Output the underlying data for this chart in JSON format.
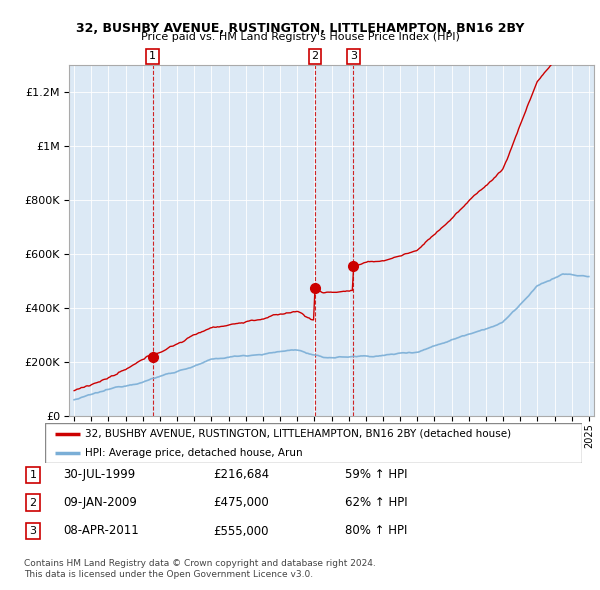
{
  "title1": "32, BUSHBY AVENUE, RUSTINGTON, LITTLEHAMPTON, BN16 2BY",
  "title2": "Price paid vs. HM Land Registry's House Price Index (HPI)",
  "legend_label1": "32, BUSHBY AVENUE, RUSTINGTON, LITTLEHAMPTON, BN16 2BY (detached house)",
  "legend_label2": "HPI: Average price, detached house, Arun",
  "footnote1": "Contains HM Land Registry data © Crown copyright and database right 2024.",
  "footnote2": "This data is licensed under the Open Government Licence v3.0.",
  "sale_dates": [
    1999.58,
    2009.03,
    2011.27
  ],
  "sale_prices": [
    216684,
    475000,
    555000
  ],
  "sale_labels": [
    "1",
    "2",
    "3"
  ],
  "sale_info": [
    [
      "1",
      "30-JUL-1999",
      "£216,684",
      "59% ↑ HPI"
    ],
    [
      "2",
      "09-JAN-2009",
      "£475,000",
      "62% ↑ HPI"
    ],
    [
      "3",
      "08-APR-2011",
      "£555,000",
      "80% ↑ HPI"
    ]
  ],
  "red_color": "#cc0000",
  "blue_color": "#7aaed6",
  "bg_color": "#dce9f5",
  "background_color": "#ffffff",
  "ylim": [
    0,
    1300000
  ],
  "xlim": [
    1994.7,
    2025.3
  ]
}
